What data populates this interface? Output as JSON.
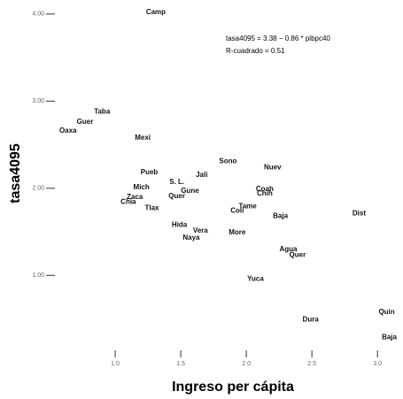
{
  "chart_data": {
    "type": "scatter",
    "xlabel": "Ingreso per cápita",
    "ylabel": "tasa4095",
    "annotations": [
      "tasa4095 = 3.38 − 0.86 * pibpc40",
      "R-cuadrado = 0.51"
    ],
    "labels": [
      "Camp",
      "Taba",
      "Guer",
      "Oaxa",
      "Mexi",
      "Sono",
      "Nuev",
      "Pueb",
      "Jali",
      "S. L.",
      "Mich",
      "Gune",
      "Coah",
      "Chih",
      "Zaca",
      "Quer",
      "Chia",
      "Tlax",
      "Tame",
      "Coli",
      "Baja",
      "Dist",
      "Hida",
      "Vera",
      "Naya",
      "More",
      "Agua",
      "Quer",
      "Yuca",
      "Dura",
      "Quin",
      "Baja"
    ],
    "x": [
      1.31,
      0.9,
      0.77,
      0.64,
      1.21,
      1.86,
      2.2,
      1.26,
      1.66,
      1.47,
      1.2,
      1.57,
      2.14,
      2.14,
      1.15,
      1.47,
      1.1,
      1.28,
      2.01,
      1.93,
      2.26,
      2.86,
      1.49,
      1.65,
      1.58,
      1.93,
      2.32,
      2.39,
      2.07,
      2.49,
      3.07,
      3.09
    ],
    "values": [
      4.02,
      2.88,
      2.76,
      2.66,
      2.58,
      2.31,
      2.24,
      2.18,
      2.15,
      2.07,
      2.01,
      1.97,
      1.99,
      1.94,
      1.9,
      1.91,
      1.84,
      1.77,
      1.79,
      1.74,
      1.68,
      1.71,
      1.58,
      1.51,
      1.43,
      1.49,
      1.3,
      1.23,
      0.96,
      0.49,
      0.58,
      0.29
    ],
    "emphasized": [
      16
    ],
    "color": "#111111",
    "xlim": [
      0.5,
      3.1
    ],
    "ylim": [
      0.15,
      4.1
    ],
    "xticks": [
      {
        "value": 1,
        "label": "1.0"
      },
      {
        "value": 1.5,
        "label": "1.5"
      },
      {
        "value": 2,
        "label": "2.0"
      },
      {
        "value": 2.5,
        "label": "2.5"
      },
      {
        "value": 3,
        "label": "3.0"
      }
    ],
    "yticks": [
      {
        "value": 1,
        "label": "1.00"
      },
      {
        "value": 2,
        "label": "2.00"
      },
      {
        "value": 3,
        "label": "3.00"
      },
      {
        "value": 4,
        "label": "4.00"
      }
    ]
  }
}
